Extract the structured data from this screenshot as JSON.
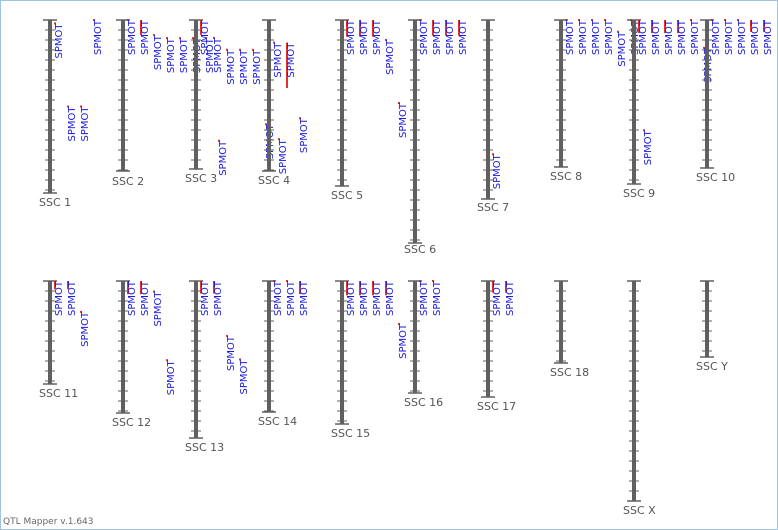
{
  "app": {
    "version": "QTL Mapper v.1.643"
  },
  "colors": {
    "chromosome": "#606060",
    "qtl_bar": "#e03030",
    "label": "#1a1adc",
    "chr_label": "#555555"
  },
  "chromosomes": [
    {
      "name": "SSC 1",
      "qtls": [
        {
          "label": "SPMOT",
          "start": 0.02,
          "end": 0.02
        },
        {
          "label": "SPMOT",
          "start": 0.5,
          "end": 0.5
        },
        {
          "label": "SPMOT",
          "start": 0.5,
          "end": 0.5
        },
        {
          "label": "SPMOT",
          "start": 0.0,
          "end": 0.0
        }
      ]
    },
    {
      "name": "SSC 2",
      "qtls": [
        {
          "label": "SPMOT",
          "start": 0.0,
          "end": 0.0
        },
        {
          "label": "SPMOT",
          "start": 0.0,
          "end": 0.1
        },
        {
          "label": "SPMOT",
          "start": 0.1,
          "end": 0.1
        },
        {
          "label": "SPMOT",
          "start": 0.12,
          "end": 0.12
        },
        {
          "label": "SPMOT",
          "start": 0.12,
          "end": 0.12
        },
        {
          "label": "SPMOT",
          "start": 0.12,
          "end": 0.12
        },
        {
          "label": "SPMOT",
          "start": 0.12,
          "end": 0.12
        },
        {
          "label": "SPMOT",
          "start": 0.8,
          "end": 0.8
        }
      ]
    },
    {
      "name": "SSC 3",
      "qtls": [
        {
          "label": "SPMOT",
          "start": 0.0,
          "end": 0.1
        },
        {
          "label": "SPMOT",
          "start": 0.12,
          "end": 0.12
        },
        {
          "label": "SPMOT",
          "start": 0.2,
          "end": 0.2
        },
        {
          "label": "SPMOT",
          "start": 0.2,
          "end": 0.2
        },
        {
          "label": "SPMOT",
          "start": 0.2,
          "end": 0.2
        },
        {
          "label": "SPMOT",
          "start": 0.7,
          "end": 0.7
        },
        {
          "label": "SPMOT",
          "start": 0.8,
          "end": 0.8
        }
      ]
    },
    {
      "name": "SSC 4",
      "qtls": [
        {
          "label": "SPMOT",
          "start": 0.15,
          "end": 0.15
        },
        {
          "label": "SPMOT",
          "start": 0.15,
          "end": 0.45
        },
        {
          "label": "SPMOT",
          "start": 0.65,
          "end": 0.65
        }
      ]
    },
    {
      "name": "SSC 5",
      "qtls": [
        {
          "label": "SPMOT",
          "start": 0.0,
          "end": 0.1
        },
        {
          "label": "SPMOT",
          "start": 0.0,
          "end": 0.1
        },
        {
          "label": "SPMOT",
          "start": 0.0,
          "end": 0.1
        },
        {
          "label": "SPMOT",
          "start": 0.12,
          "end": 0.12
        },
        {
          "label": "SPMOT",
          "start": 0.5,
          "end": 0.5
        }
      ]
    },
    {
      "name": "SSC 6",
      "qtls": [
        {
          "label": "SPMOT",
          "start": 0.0,
          "end": 0.0
        },
        {
          "label": "SPMOT",
          "start": 0.0,
          "end": 0.07
        },
        {
          "label": "SPMOT",
          "start": 0.0,
          "end": 0.07
        },
        {
          "label": "SPMOT",
          "start": 0.0,
          "end": 0.07
        }
      ]
    },
    {
      "name": "SSC 7",
      "qtls": [
        {
          "label": "SPMOT",
          "start": 0.75,
          "end": 0.75
        }
      ]
    },
    {
      "name": "SSC 8",
      "qtls": [
        {
          "label": "SPMOT",
          "start": 0.0,
          "end": 0.0
        },
        {
          "label": "SPMOT",
          "start": 0.0,
          "end": 0.0
        },
        {
          "label": "SPMOT",
          "start": 0.0,
          "end": 0.0
        },
        {
          "label": "SPMOT",
          "start": 0.0,
          "end": 0.0
        },
        {
          "label": "SPMOT",
          "start": 0.08,
          "end": 0.08
        },
        {
          "label": "SPMOT",
          "start": 0.0,
          "end": 0.0
        },
        {
          "label": "SPMOT",
          "start": 0.75,
          "end": 0.75
        }
      ]
    },
    {
      "name": "SSC 9",
      "qtls": [
        {
          "label": "SPMOT",
          "start": 0.0,
          "end": 0.08
        },
        {
          "label": "SPMOT",
          "start": 0.0,
          "end": 0.08
        },
        {
          "label": "SPMOT",
          "start": 0.0,
          "end": 0.08
        },
        {
          "label": "SPMOT",
          "start": 0.0,
          "end": 0.08
        },
        {
          "label": "SPMOT",
          "start": 0.0,
          "end": 0.0
        },
        {
          "label": "SPMOT",
          "start": 0.17,
          "end": 0.17
        }
      ]
    },
    {
      "name": "SSC 10",
      "qtls": [
        {
          "label": "SPMOT",
          "start": 0.0,
          "end": 0.0
        },
        {
          "label": "SPMOT",
          "start": 0.0,
          "end": 0.0
        },
        {
          "label": "SPMOT",
          "start": 0.0,
          "end": 0.0
        },
        {
          "label": "SPMOT",
          "start": 0.0,
          "end": 0.08
        },
        {
          "label": "SPMOT",
          "start": 0.0,
          "end": 0.08
        },
        {
          "label": "SPMOT",
          "start": 0.0,
          "end": 0.08
        },
        {
          "label": "SPMOT",
          "start": 0.0,
          "end": 0.08
        },
        {
          "label": "SPMOT",
          "start": 0.0,
          "end": 0.0
        },
        {
          "label": "SPMOT",
          "start": 0.0,
          "end": 0.0
        },
        {
          "label": "SPMOT",
          "start": 0.0,
          "end": 0.0
        }
      ]
    },
    {
      "name": "SSC 11",
      "qtls": [
        {
          "label": "SPMOT",
          "start": 0.0,
          "end": 0.08
        },
        {
          "label": "SPMOT",
          "start": 0.0,
          "end": 0.08
        },
        {
          "label": "SPMOT",
          "start": 0.3,
          "end": 0.3
        }
      ]
    },
    {
      "name": "SSC 12",
      "qtls": [
        {
          "label": "SPMOT",
          "start": 0.0,
          "end": 0.1
        },
        {
          "label": "SPMOT",
          "start": 0.0,
          "end": 0.1
        },
        {
          "label": "SPMOT",
          "start": 0.08,
          "end": 0.08
        },
        {
          "label": "SPMOT",
          "start": 0.6,
          "end": 0.6
        }
      ]
    },
    {
      "name": "SSC 13",
      "qtls": [
        {
          "label": "SPMOT",
          "start": 0.0,
          "end": 0.08
        },
        {
          "label": "SPMOT",
          "start": 0.0,
          "end": 0.08
        },
        {
          "label": "SPMOT",
          "start": 0.35,
          "end": 0.35
        },
        {
          "label": "SPMOT",
          "start": 0.5,
          "end": 0.5
        }
      ]
    },
    {
      "name": "SSC 14",
      "qtls": [
        {
          "label": "SPMOT",
          "start": 0.0,
          "end": 0.0
        },
        {
          "label": "SPMOT",
          "start": 0.0,
          "end": 0.0
        },
        {
          "label": "SPMOT",
          "start": 0.0,
          "end": 0.1
        }
      ]
    },
    {
      "name": "SSC 15",
      "qtls": [
        {
          "label": "SPMOT",
          "start": 0.0,
          "end": 0.1
        },
        {
          "label": "SPMOT",
          "start": 0.0,
          "end": 0.1
        },
        {
          "label": "SPMOT",
          "start": 0.0,
          "end": 0.1
        },
        {
          "label": "SPMOT",
          "start": 0.0,
          "end": 0.1
        },
        {
          "label": "SPMOT",
          "start": 0.3,
          "end": 0.3
        }
      ]
    },
    {
      "name": "SSC 16",
      "qtls": [
        {
          "label": "SPMOT",
          "start": 0.0,
          "end": 0.0
        },
        {
          "label": "SPMOT",
          "start": 0.0,
          "end": 0.0
        }
      ]
    },
    {
      "name": "SSC 17",
      "qtls": [
        {
          "label": "SPMOT",
          "start": 0.0,
          "end": 0.1
        },
        {
          "label": "SPMOT",
          "start": 0.0,
          "end": 0.1
        }
      ]
    },
    {
      "name": "SSC 18",
      "qtls": []
    },
    {
      "name": "SSC X",
      "qtls": []
    },
    {
      "name": "SSC Y",
      "qtls": []
    }
  ]
}
